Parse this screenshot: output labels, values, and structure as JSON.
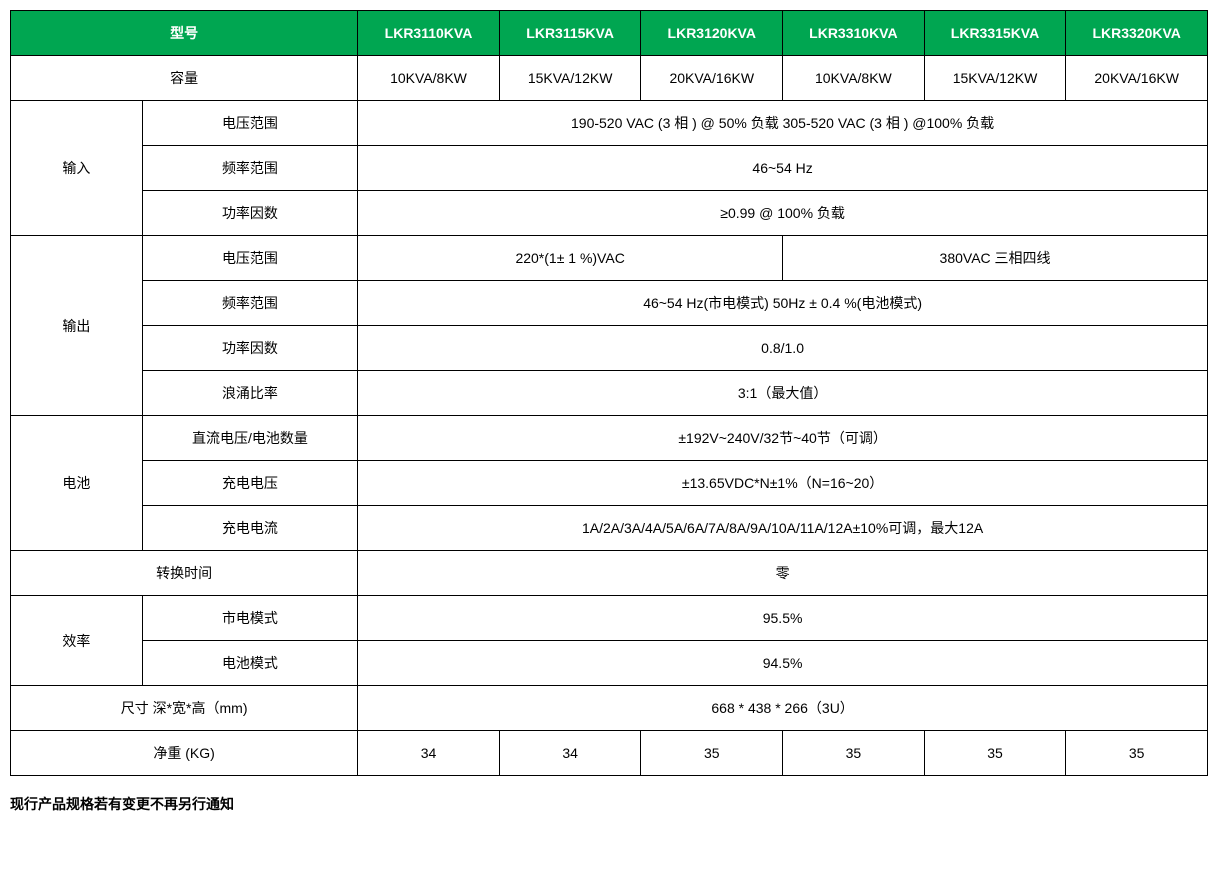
{
  "colors": {
    "header_bg": "#00a651",
    "header_text": "#ffffff",
    "border": "#000000",
    "text": "#000000",
    "background": "#ffffff"
  },
  "header": {
    "model_label": "型号",
    "models": [
      "LKR3110KVA",
      "LKR3115KVA",
      "LKR3120KVA",
      "LKR3310KVA",
      "LKR3315KVA",
      "LKR3320KVA"
    ]
  },
  "capacity": {
    "label": "容量",
    "values": [
      "10KVA/8KW",
      "15KVA/12KW",
      "20KVA/16KW",
      "10KVA/8KW",
      "15KVA/12KW",
      "20KVA/16KW"
    ]
  },
  "input": {
    "label": "输入",
    "voltage_range": {
      "label": "电压范围",
      "value": "190-520 VAC (3 相 ) @ 50% 负载   305-520 VAC (3 相 ) @100% 负载"
    },
    "freq_range": {
      "label": "频率范围",
      "value": "46~54 Hz"
    },
    "power_factor": {
      "label": "功率因数",
      "value": "≥0.99 @ 100% 负载"
    }
  },
  "output": {
    "label": "输出",
    "voltage_range": {
      "label": "电压范围",
      "value_a": "220*(1± 1 %)VAC",
      "value_b": "380VAC 三相四线"
    },
    "freq_range": {
      "label": "频率范围",
      "value": "46~54 Hz(市电模式)  50Hz ± 0.4 %(电池模式)"
    },
    "power_factor": {
      "label": "功率因数",
      "value": "0.8/1.0"
    },
    "surge_ratio": {
      "label": "浪涌比率",
      "value": "3:1（最大值）"
    }
  },
  "battery": {
    "label": "电池",
    "dc_voltage": {
      "label": "直流电压/电池数量",
      "value": "±192V~240V/32节~40节（可调）"
    },
    "charge_voltage": {
      "label": "充电电压",
      "value": "±13.65VDC*N±1%（N=16~20）"
    },
    "charge_current": {
      "label": "充电电流",
      "value": "1A/2A/3A/4A/5A/6A/7A/8A/9A/10A/11A/12A±10%可调，最大12A"
    }
  },
  "transfer_time": {
    "label": "转换时间",
    "value": "零"
  },
  "efficiency": {
    "label": "效率",
    "mains_mode": {
      "label": "市电模式",
      "value": "95.5%"
    },
    "battery_mode": {
      "label": "电池模式",
      "value": "94.5%"
    }
  },
  "dimensions": {
    "label": "尺寸 深*宽*高（mm)",
    "value": "668 * 438 * 266（3U）"
  },
  "weight": {
    "label": "净重 (KG)",
    "values": [
      "34",
      "34",
      "35",
      "35",
      "35",
      "35"
    ]
  },
  "footnote": "现行产品规格若有变更不再另行通知"
}
